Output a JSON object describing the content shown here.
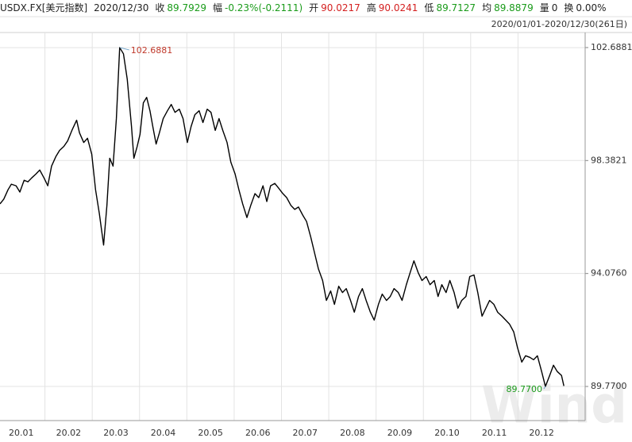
{
  "chart_data": {
    "type": "line",
    "header": {
      "symbol": "USDX.FX[美元指数]",
      "date": "2020/12/30",
      "items": [
        {
          "label": "收",
          "value": "89.7929",
          "color": "#1a9b1a"
        },
        {
          "label": "幅",
          "value": "-0.23%(-0.2111)",
          "color": "#1a9b1a"
        },
        {
          "label": "开",
          "value": "90.0217",
          "color": "#d42020"
        },
        {
          "label": "高",
          "value": "90.0241",
          "color": "#d42020"
        },
        {
          "label": "低",
          "value": "89.7127",
          "color": "#1a9b1a"
        },
        {
          "label": "均",
          "value": "89.8879",
          "color": "#1a9b1a"
        },
        {
          "label": "量",
          "value": "0",
          "color": "#222222"
        },
        {
          "label": "换",
          "value": "0.00%",
          "color": "#222222"
        }
      ],
      "range": "2020/01/01-2020/12/30(261日)"
    },
    "watermark": "Wind",
    "x": [
      0.05,
      0.13,
      0.22,
      0.29,
      0.39,
      0.47,
      0.56,
      0.64,
      0.72,
      0.81,
      0.89,
      0.98,
      1.06,
      1.14,
      1.23,
      1.31,
      1.4,
      1.48,
      1.57,
      1.67,
      1.73,
      1.82,
      1.9,
      1.99,
      2.07,
      2.15,
      2.24,
      2.31,
      2.37,
      2.44,
      2.51,
      2.58,
      2.66,
      2.74,
      2.83,
      2.88,
      2.95,
      3.01,
      3.08,
      3.15,
      3.22,
      3.28,
      3.35,
      3.42,
      3.5,
      3.59,
      3.67,
      3.75,
      3.84,
      3.92,
      4.01,
      4.09,
      4.17,
      4.26,
      4.34,
      4.43,
      4.51,
      4.6,
      4.68,
      4.76,
      4.85,
      4.93,
      5.02,
      5.1,
      5.18,
      5.27,
      5.35,
      5.44,
      5.52,
      5.61,
      5.69,
      5.77,
      5.86,
      5.94,
      6.03,
      6.11,
      6.2,
      6.28,
      6.36,
      6.45,
      6.53,
      6.62,
      6.7,
      6.78,
      6.87,
      6.95,
      7.04,
      7.12,
      7.21,
      7.29,
      7.37,
      7.46,
      7.54,
      7.63,
      7.71,
      7.79,
      7.88,
      7.96,
      8.05,
      8.13,
      8.22,
      8.3,
      8.38,
      8.47,
      8.55,
      8.64,
      8.72,
      8.8,
      8.89,
      8.97,
      9.06,
      9.14,
      9.23,
      9.31,
      9.39,
      9.48,
      9.56,
      9.65,
      9.73,
      9.81,
      9.9,
      9.98,
      10.07,
      10.15,
      10.24,
      10.32,
      10.4,
      10.49,
      10.57,
      10.66,
      10.74,
      10.82,
      10.91,
      10.99,
      11.08,
      11.16,
      11.25,
      11.33,
      11.41,
      11.5,
      11.58,
      11.67,
      11.75,
      11.83,
      11.92,
      11.97
    ],
    "series": [
      {
        "name": "USDX.FX",
        "color": "#000000",
        "values": [
          96.73,
          96.91,
          97.27,
          97.48,
          97.42,
          97.18,
          97.63,
          97.57,
          97.72,
          97.87,
          98.02,
          97.72,
          97.42,
          98.17,
          98.53,
          98.77,
          98.92,
          99.13,
          99.53,
          99.92,
          99.44,
          99.07,
          99.23,
          98.62,
          97.27,
          96.36,
          95.16,
          96.67,
          98.47,
          98.17,
          99.98,
          102.6881,
          102.45,
          101.48,
          99.68,
          98.47,
          98.92,
          99.38,
          100.58,
          100.79,
          100.28,
          99.68,
          99.01,
          99.44,
          99.98,
          100.28,
          100.52,
          100.22,
          100.34,
          99.98,
          99.07,
          99.68,
          100.13,
          100.28,
          99.83,
          100.34,
          100.22,
          99.53,
          99.98,
          99.53,
          99.07,
          98.32,
          97.87,
          97.27,
          96.73,
          96.21,
          96.67,
          97.12,
          96.97,
          97.42,
          96.82,
          97.42,
          97.51,
          97.33,
          97.12,
          96.97,
          96.67,
          96.52,
          96.61,
          96.3,
          96.06,
          95.46,
          94.86,
          94.26,
          93.81,
          93.05,
          93.41,
          92.9,
          93.59,
          93.35,
          93.5,
          93.05,
          92.6,
          93.2,
          93.5,
          93.05,
          92.6,
          92.3,
          92.9,
          93.29,
          93.05,
          93.2,
          93.5,
          93.35,
          93.05,
          93.65,
          94.11,
          94.56,
          94.11,
          93.81,
          93.96,
          93.65,
          93.81,
          93.2,
          93.65,
          93.35,
          93.81,
          93.35,
          92.75,
          93.05,
          93.2,
          93.96,
          94.02,
          93.35,
          92.45,
          92.75,
          93.05,
          92.9,
          92.6,
          92.45,
          92.3,
          92.15,
          91.85,
          91.25,
          90.7,
          90.94,
          90.88,
          90.79,
          90.94,
          90.34,
          89.77,
          90.19,
          90.58,
          90.34,
          90.19,
          89.79
        ]
      }
    ],
    "annotations": [
      {
        "label": "102.6881",
        "x": 2.58,
        "y": 102.6881,
        "color": "#c0392b"
      },
      {
        "label": "89.7700",
        "x": 11.58,
        "y": 89.77,
        "color": "#1a9b1a"
      }
    ],
    "xlim": [
      0.05,
      12.42
    ],
    "xticks": [
      {
        "value": 0,
        "label": "20.01"
      },
      {
        "value": 1,
        "label": "20.02"
      },
      {
        "value": 2,
        "label": "20.03"
      },
      {
        "value": 3,
        "label": "20.04"
      },
      {
        "value": 4,
        "label": "20.05"
      },
      {
        "value": 5,
        "label": "20.06"
      },
      {
        "value": 6,
        "label": "20.07"
      },
      {
        "value": 7,
        "label": "20.08"
      },
      {
        "value": 8,
        "label": "20.09"
      },
      {
        "value": 9,
        "label": "20.10"
      },
      {
        "value": 10,
        "label": "20.11"
      },
      {
        "value": 11,
        "label": "20.12"
      }
    ],
    "ylim": [
      88.47,
      103.14
    ],
    "yticks": [
      {
        "value": 89.77,
        "label": "89.7700"
      },
      {
        "value": 94.076,
        "label": "94.0760"
      },
      98.3821,
      102.6881
    ],
    "grid": true
  }
}
